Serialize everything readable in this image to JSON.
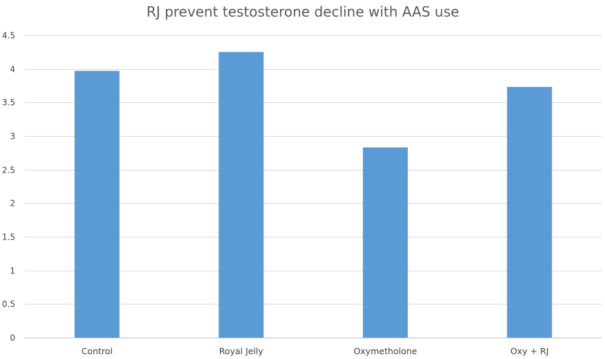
{
  "chart_data": {
    "type": "bar",
    "title": "RJ prevent testosterone decline with AAS use",
    "xlabel": "",
    "ylabel": "",
    "categories": [
      "Control",
      "Royal Jelly",
      "Oxymetholone",
      "Oxy + RJ"
    ],
    "values": [
      3.97,
      4.25,
      2.83,
      3.73
    ],
    "ylim": [
      0,
      4.5
    ],
    "yticks": [
      0,
      0.5,
      1,
      1.5,
      2,
      2.5,
      3,
      3.5,
      4,
      4.5
    ],
    "ytick_labels": [
      "0",
      "0.5",
      "1",
      "1.5",
      "2",
      "2.5",
      "3",
      "3.5",
      "4",
      "4.5"
    ],
    "bar_color": "#5b9bd5",
    "grid": true,
    "legend": "none"
  }
}
